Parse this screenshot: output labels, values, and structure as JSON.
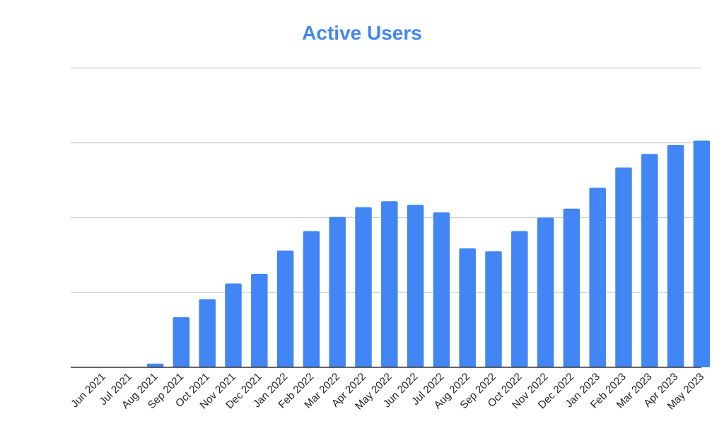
{
  "chart_data": {
    "type": "bar",
    "title": "Active Users",
    "xlabel": "",
    "ylabel": "",
    "categories": [
      "Jun 2021",
      "Jul 2021",
      "Aug 2021",
      "Sep 2021",
      "Oct 2021",
      "Nov 2021",
      "Dec 2021",
      "Jan 2022",
      "Feb 2022",
      "Mar 2022",
      "Apr 2022",
      "May 2022",
      "Jun 2022",
      "Jul 2022",
      "Aug 2022",
      "Sep 2022",
      "Oct 2022",
      "Nov 2022",
      "Dec 2022",
      "Jan 2023",
      "Feb 2023",
      "Mar 2023",
      "Apr 2023",
      "May 2023"
    ],
    "values": [
      0,
      0,
      0.05,
      0.67,
      0.91,
      1.12,
      1.25,
      1.56,
      1.82,
      2.01,
      2.14,
      2.22,
      2.17,
      2.07,
      1.59,
      1.55,
      1.82,
      2.0,
      2.12,
      2.4,
      2.67,
      2.85,
      2.97,
      3.03
    ],
    "ylim": [
      0,
      4
    ],
    "y_tick_labels_shown": false,
    "grid": true,
    "legend": "none",
    "colors": {
      "bar": "#4285F4",
      "title": "#4285F4",
      "gridline": "#CCCCCC",
      "baseline": "#333333",
      "tick_text": "#222222"
    }
  }
}
